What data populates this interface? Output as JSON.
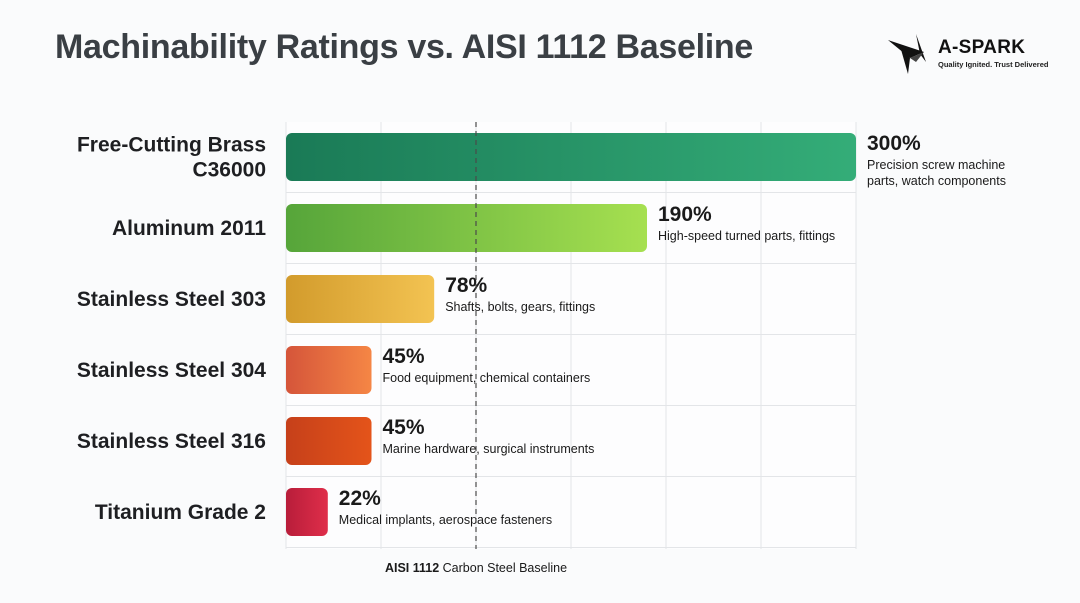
{
  "colors": {
    "brass": [
      "#1a7a56",
      "#34ad78"
    ],
    "aluminum": [
      "#56a53a",
      "#a6e050"
    ],
    "ss303": [
      "#d29b2c",
      "#f3c352"
    ],
    "ss304": [
      "#d5553a",
      "#f58645"
    ],
    "ss316": [
      "#c6401a",
      "#e4541a"
    ],
    "titanium": [
      "#b81d3a",
      "#df2e4a"
    ]
  },
  "header": {
    "title": "Machinability Ratings vs. AISI 1112 Baseline"
  },
  "brand": {
    "name": "A-SPARK",
    "tagline": "Quality Ignited. Trust Delivered"
  },
  "chart_data": {
    "type": "bar",
    "orientation": "horizontal",
    "title": "Machinability Ratings vs. AISI 1112 Baseline",
    "xlim": [
      0,
      300
    ],
    "grid": true,
    "categories": [
      [
        "Free-Cutting Brass",
        "C36000"
      ],
      [
        "Aluminum 2011"
      ],
      [
        "Stainless Steel 303"
      ],
      [
        "Stainless Steel 304"
      ],
      [
        "Stainless Steel 316"
      ],
      [
        "Titanium Grade 2"
      ]
    ],
    "values": [
      300,
      190,
      78,
      45,
      45,
      22
    ],
    "value_labels": [
      "300%",
      "190%",
      "78%",
      "45%",
      "45%",
      "22%"
    ],
    "notes": [
      [
        "Precision screw machine",
        "parts, watch components"
      ],
      [
        "High-speed turned parts, fittings"
      ],
      [
        "Shafts, bolts, gears, fittings"
      ],
      [
        "Food equipment, chemical containers"
      ],
      [
        "Marine hardware, surgical instruments"
      ],
      [
        "Medical implants, aerospace fasteners"
      ]
    ],
    "color_keys": [
      "brass",
      "aluminum",
      "ss303",
      "ss304",
      "ss316",
      "titanium"
    ],
    "baseline": {
      "value": 100,
      "label_bold": "AISI 1112",
      "label_rest": " Carbon Steel Baseline"
    }
  }
}
